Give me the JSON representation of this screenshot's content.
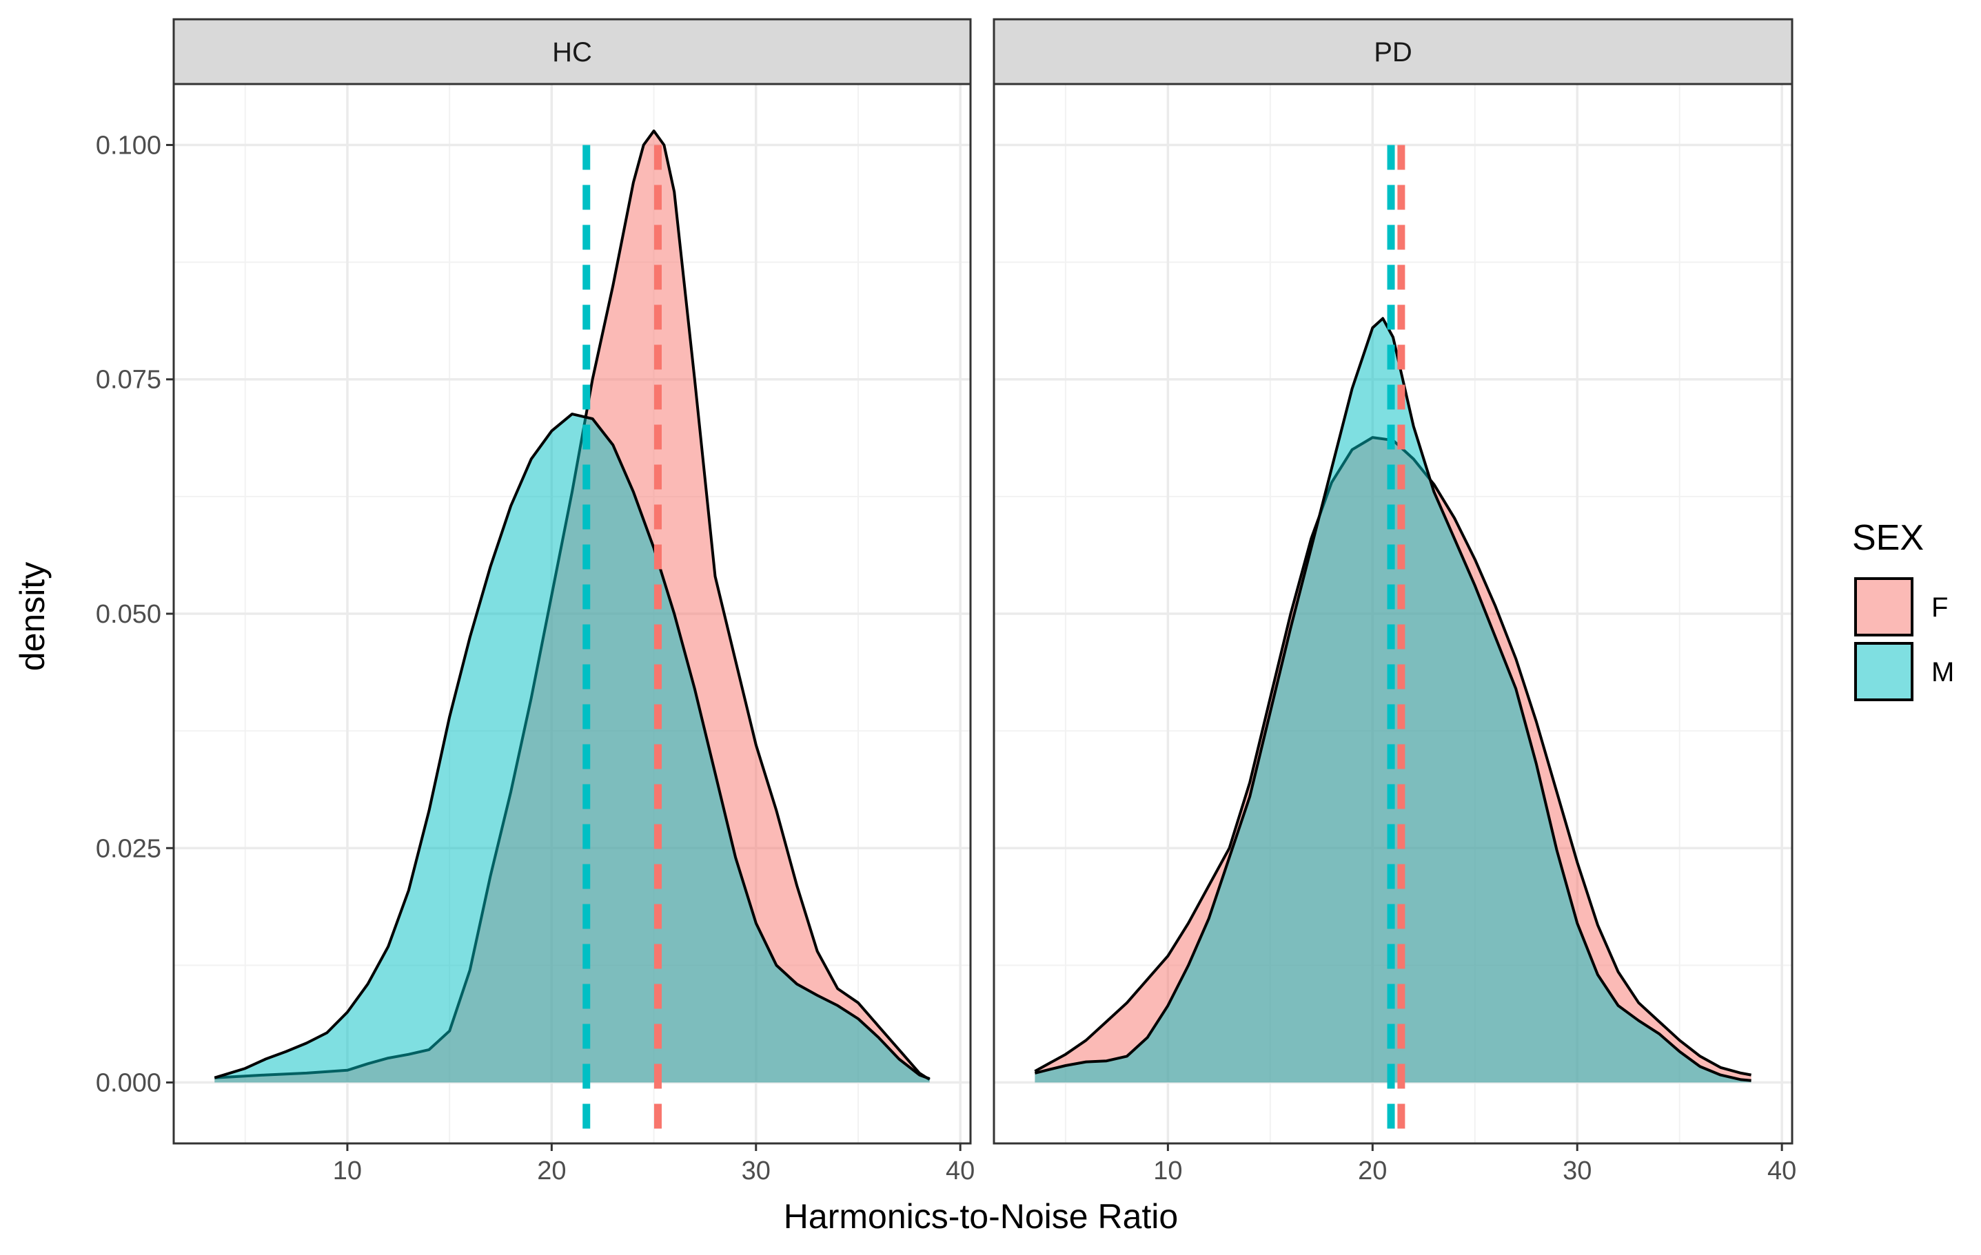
{
  "chart_data": {
    "type": "density",
    "xlabel": "Harmonics-to-Noise Ratio",
    "ylabel": "density",
    "xlim": [
      1.5,
      40.5
    ],
    "ylim": [
      -0.0065,
      0.1065
    ],
    "x_ticks": [
      10,
      20,
      30,
      40
    ],
    "x_tick_labels": [
      "10",
      "20",
      "30",
      "40"
    ],
    "y_ticks": [
      0.0,
      0.025,
      0.05,
      0.075,
      0.1
    ],
    "y_tick_labels": [
      "0.000",
      "0.025",
      "0.050",
      "0.075",
      "0.100"
    ],
    "grid": true,
    "legend": {
      "title": "SEX",
      "position": "right",
      "entries": [
        {
          "label": "F",
          "color": "#F8766D"
        },
        {
          "label": "M",
          "color": "#00BFC4"
        }
      ]
    },
    "colors": {
      "F": "#F8766D",
      "M": "#00BFC4",
      "outline": "#000000"
    },
    "fill_alpha": 0.5,
    "panels": [
      {
        "strip": "HC",
        "series": [
          {
            "name": "F",
            "x": [
              3.5,
              6,
              8,
              10,
              11,
              12,
              13,
              14,
              15,
              16,
              17,
              18,
              19,
              20,
              21,
              22,
              23,
              24,
              24.5,
              25,
              25.5,
              26,
              27,
              28,
              29,
              30,
              31,
              32,
              33,
              34,
              35,
              36,
              37,
              38,
              38.5
            ],
            "y": [
              0.0005,
              0.0008,
              0.001,
              0.0013,
              0.002,
              0.0026,
              0.003,
              0.0035,
              0.0055,
              0.012,
              0.022,
              0.031,
              0.041,
              0.052,
              0.063,
              0.075,
              0.085,
              0.096,
              0.1,
              0.1015,
              0.1,
              0.095,
              0.075,
              0.054,
              0.045,
              0.036,
              0.029,
              0.021,
              0.014,
              0.01,
              0.0085,
              0.006,
              0.0035,
              0.001,
              0.0003
            ]
          },
          {
            "name": "M",
            "x": [
              3.5,
              5,
              6,
              7,
              8,
              9,
              10,
              11,
              12,
              13,
              14,
              15,
              16,
              17,
              18,
              19,
              20,
              21,
              22,
              23,
              24,
              25,
              26,
              27,
              28,
              29,
              30,
              31,
              32,
              33,
              34,
              35,
              36,
              37,
              38,
              38.5
            ],
            "y": [
              0.0005,
              0.0015,
              0.0025,
              0.0033,
              0.0042,
              0.0053,
              0.0075,
              0.0105,
              0.0145,
              0.0205,
              0.029,
              0.039,
              0.0475,
              0.055,
              0.0615,
              0.0665,
              0.0695,
              0.0713,
              0.0708,
              0.068,
              0.063,
              0.057,
              0.05,
              0.042,
              0.033,
              0.024,
              0.017,
              0.0125,
              0.0105,
              0.0093,
              0.0082,
              0.0068,
              0.0048,
              0.0025,
              0.0008,
              0.0004
            ]
          }
        ],
        "means": [
          {
            "name": "F",
            "x": 25.2
          },
          {
            "name": "M",
            "x": 21.7
          }
        ]
      },
      {
        "strip": "PD",
        "series": [
          {
            "name": "F",
            "x": [
              3.5,
              5,
              6,
              7,
              8,
              9,
              10,
              11,
              12,
              13,
              14,
              15,
              16,
              17,
              18,
              19,
              20,
              21,
              22,
              23,
              24,
              25,
              26,
              27,
              28,
              29,
              30,
              31,
              32,
              33,
              34,
              35,
              36,
              37,
              38,
              38.5
            ],
            "y": [
              0.0012,
              0.003,
              0.0045,
              0.0065,
              0.0085,
              0.011,
              0.0135,
              0.017,
              0.021,
              0.025,
              0.032,
              0.041,
              0.05,
              0.058,
              0.064,
              0.0675,
              0.0688,
              0.0685,
              0.0665,
              0.0638,
              0.0602,
              0.0558,
              0.0508,
              0.0452,
              0.0385,
              0.031,
              0.0235,
              0.0168,
              0.0118,
              0.0085,
              0.0065,
              0.0045,
              0.0028,
              0.0016,
              0.001,
              0.0008
            ]
          },
          {
            "name": "M",
            "x": [
              3.5,
              5,
              6,
              7,
              8,
              9,
              10,
              11,
              12,
              13,
              14,
              15,
              16,
              17,
              18,
              19,
              20,
              20.5,
              21,
              22,
              23,
              24,
              25,
              26,
              27,
              28,
              29,
              30,
              31,
              32,
              33,
              34,
              35,
              36,
              37,
              38,
              38.5
            ],
            "y": [
              0.001,
              0.0018,
              0.0022,
              0.0023,
              0.0028,
              0.0048,
              0.0082,
              0.0125,
              0.0175,
              0.024,
              0.0305,
              0.0395,
              0.0485,
              0.057,
              0.0655,
              0.074,
              0.0805,
              0.0815,
              0.0795,
              0.07,
              0.063,
              0.058,
              0.053,
              0.0475,
              0.042,
              0.034,
              0.0248,
              0.017,
              0.0115,
              0.0082,
              0.0066,
              0.0052,
              0.0033,
              0.0017,
              0.0008,
              0.0003,
              0.0002
            ]
          }
        ],
        "means": [
          {
            "name": "F",
            "x": 21.4
          },
          {
            "name": "M",
            "x": 20.9
          }
        ]
      }
    ]
  }
}
